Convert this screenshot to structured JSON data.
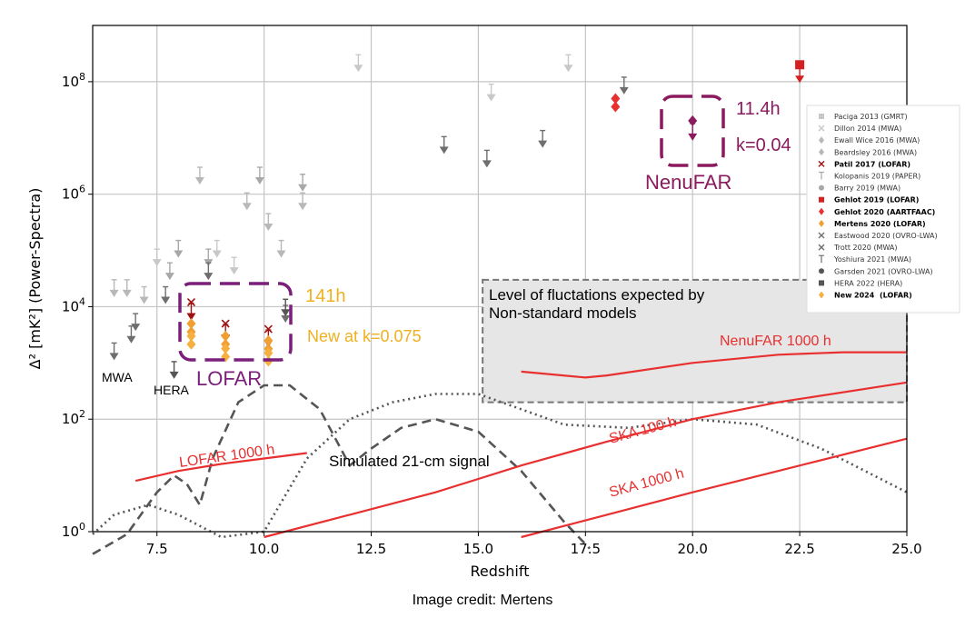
{
  "chart_data": {
    "type": "scatter",
    "xlabel": "Redshift",
    "ylabel": "Δ² [mK²] (Power-Spectra)",
    "xlim": [
      6.0,
      25.0
    ],
    "ylim_log10": [
      0,
      9
    ],
    "y_scale": "log",
    "grid": true,
    "legend_placement": "top-right",
    "x_ticks": [
      7.5,
      10.0,
      12.5,
      15.0,
      17.5,
      20.0,
      22.5,
      25.0
    ],
    "x_tick_labels": [
      "7.5",
      "10.0",
      "12.5",
      "15.0",
      "17.5",
      "20.0",
      "22.5",
      "25.0"
    ],
    "y_ticks": [
      {
        "value": 1,
        "base": "10",
        "exp": "0"
      },
      {
        "value": 100,
        "base": "10",
        "exp": "2"
      },
      {
        "value": 10000,
        "base": "10",
        "exp": "4"
      },
      {
        "value": 1000000,
        "base": "10",
        "exp": "6"
      },
      {
        "value": 100000000,
        "base": "10",
        "exp": "8"
      }
    ],
    "limit_groups": [
      {
        "color": "#c8c8c8",
        "points": [
          [
            12.2,
            200000000
          ],
          [
            15.3,
            60000000
          ],
          [
            17.1,
            200000000
          ],
          [
            8.9,
            100000
          ],
          [
            9.3,
            50000
          ],
          [
            7.5,
            70000
          ]
        ]
      },
      {
        "color": "#b8b8b8",
        "points": [
          [
            6.5,
            20000
          ],
          [
            6.8,
            20000
          ],
          [
            7.2,
            15000
          ],
          [
            8.5,
            2000000
          ],
          [
            9.6,
            700000
          ],
          [
            10.1,
            300000
          ],
          [
            10.4,
            100000
          ],
          [
            10.9,
            700000
          ]
        ]
      },
      {
        "color": "#a8a8a8",
        "points": [
          [
            8.0,
            100000
          ],
          [
            8.7,
            70000
          ],
          [
            9.9,
            2000000
          ],
          [
            10.9,
            1500000
          ],
          [
            7.8,
            40000
          ]
        ]
      },
      {
        "color": "#6e6e6e",
        "points": [
          [
            14.2,
            7000000
          ],
          [
            15.2,
            4000000
          ],
          [
            16.5,
            9000000
          ],
          [
            18.4,
            80000000
          ],
          [
            6.5,
            1500
          ],
          [
            6.9,
            3000
          ],
          [
            7.0,
            5000
          ],
          [
            7.7,
            15000
          ],
          [
            8.7,
            40000
          ],
          [
            10.5,
            7000
          ]
        ]
      },
      {
        "color": "#555555",
        "points": [
          [
            7.9,
            700
          ],
          [
            10.5,
            9000
          ]
        ]
      }
    ],
    "series": [
      {
        "name": "Paciga 2013 (GMRT)",
        "color": "#c8c8c8",
        "marker": "square",
        "bold": false,
        "points": []
      },
      {
        "name": "Dillon 2014 (MWA)",
        "color": "#c8c8c8",
        "marker": "x",
        "bold": false,
        "points": []
      },
      {
        "name": "Ewall Wice 2016 (MWA)",
        "color": "#b8b8b8",
        "marker": "diamond",
        "bold": false,
        "points": []
      },
      {
        "name": "Beardsley 2016 (MWA)",
        "color": "#b8b8b8",
        "marker": "diamond",
        "bold": false,
        "points": []
      },
      {
        "name": "Patil 2017 (LOFAR)",
        "color": "#a01010",
        "marker": "x",
        "bold": true,
        "points": [
          [
            8.3,
            12000
          ],
          [
            9.1,
            5000
          ],
          [
            10.1,
            4000
          ]
        ]
      },
      {
        "name": "Kolopanis 2019 (PAPER)",
        "color": "#a8a8a8",
        "marker": "bar",
        "bold": false,
        "points": []
      },
      {
        "name": "Barry 2019 (MWA)",
        "color": "#a8a8a8",
        "marker": "circle",
        "bold": false,
        "points": []
      },
      {
        "name": "Gehlot 2019 (LOFAR)",
        "color": "#d42020",
        "marker": "square",
        "bold": true,
        "points": [
          [
            22.5,
            200000000
          ]
        ]
      },
      {
        "name": "Gehlot 2020 (AARTFAAC)",
        "color": "#e83030",
        "marker": "diamond",
        "bold": true,
        "points": [
          [
            18.2,
            50000000
          ]
        ]
      },
      {
        "name": "Mertens 2020 (LOFAR)",
        "color": "#f0a030",
        "marker": "diamond",
        "bold": true,
        "points": [
          [
            8.3,
            5000
          ],
          [
            9.1,
            3000
          ],
          [
            10.1,
            2500
          ]
        ]
      },
      {
        "name": "Eastwood 2020 (OVRO-LWA)",
        "color": "#6e6e6e",
        "marker": "x",
        "bold": false,
        "points": []
      },
      {
        "name": "Trott 2020 (MWA)",
        "color": "#6e6e6e",
        "marker": "x",
        "bold": false,
        "points": []
      },
      {
        "name": "Yoshiura 2021 (MWA)",
        "color": "#6e6e6e",
        "marker": "bar",
        "bold": false,
        "points": []
      },
      {
        "name": "Garsden 2021 (OVRO-LWA)",
        "color": "#555555",
        "marker": "circle",
        "bold": false,
        "points": []
      },
      {
        "name": "HERA 2022 (HERA)",
        "color": "#555555",
        "marker": "square",
        "bold": false,
        "points": []
      },
      {
        "name_prefix": "New",
        "name_suffix": "(LOFAR)",
        "name_overlay": "2024",
        "color": "#f5b040",
        "marker": "diamond",
        "bold": true,
        "points": [
          [
            8.3,
            3000
          ],
          [
            9.1,
            1800
          ],
          [
            10.1,
            1500
          ]
        ]
      }
    ],
    "nenufar_point": {
      "x": 20.0,
      "y": 15000000,
      "color": "#8b1a5e"
    },
    "curves": [
      {
        "name": "Simulated 21-cm signal",
        "style": "dashed",
        "color": "#555555",
        "points": [
          [
            6.0,
            0.4
          ],
          [
            6.8,
            0.9
          ],
          [
            7.5,
            5
          ],
          [
            7.9,
            10
          ],
          [
            8.2,
            7
          ],
          [
            8.5,
            3
          ],
          [
            8.8,
            20
          ],
          [
            9.4,
            200
          ],
          [
            10.0,
            400
          ],
          [
            10.6,
            400
          ],
          [
            11.3,
            150
          ],
          [
            12.0,
            15
          ],
          [
            12.5,
            30
          ],
          [
            13.2,
            70
          ],
          [
            14.0,
            100
          ],
          [
            15.0,
            60
          ],
          [
            16.0,
            12
          ],
          [
            17.0,
            1.5
          ],
          [
            17.6,
            0.5
          ]
        ]
      },
      {
        "style": "dotted",
        "color": "#555555",
        "points": [
          [
            6.0,
            0.9
          ],
          [
            6.5,
            2
          ],
          [
            7.3,
            3
          ],
          [
            8.0,
            2
          ],
          [
            9.0,
            0.8
          ],
          [
            10.0,
            1
          ],
          [
            11.0,
            20
          ],
          [
            12.0,
            100
          ],
          [
            13.0,
            200
          ],
          [
            14.0,
            280
          ],
          [
            15.0,
            280
          ],
          [
            16.0,
            150
          ],
          [
            17.0,
            80
          ],
          [
            18.5,
            70
          ],
          [
            20.0,
            100
          ],
          [
            21.5,
            80
          ],
          [
            23.0,
            30
          ],
          [
            25.0,
            5
          ]
        ]
      },
      {
        "name": "LOFAR 1000 h",
        "style": "solid",
        "color": "#e83030",
        "points": [
          [
            7.0,
            8
          ],
          [
            8.0,
            12
          ],
          [
            9.0,
            16
          ],
          [
            10.0,
            20
          ],
          [
            11.0,
            25
          ]
        ]
      },
      {
        "name": "SKA 100 h",
        "style": "solid",
        "color": "#e83030",
        "points": [
          [
            10.0,
            0.8
          ],
          [
            12.0,
            2
          ],
          [
            14.0,
            5
          ],
          [
            16.0,
            15
          ],
          [
            18.0,
            40
          ],
          [
            20.0,
            100
          ],
          [
            22.0,
            200
          ],
          [
            25.0,
            450
          ]
        ]
      },
      {
        "name": "SKA 1000 h",
        "style": "solid",
        "color": "#e83030",
        "points": [
          [
            16.0,
            0.8
          ],
          [
            18.0,
            2
          ],
          [
            20.0,
            5
          ],
          [
            22.0,
            12
          ],
          [
            25.0,
            45
          ]
        ]
      },
      {
        "name": "NenuFAR 1000 h",
        "style": "solid",
        "color": "#e83030",
        "points": [
          [
            16.0,
            700
          ],
          [
            17.5,
            550
          ],
          [
            18.0,
            600
          ],
          [
            20.0,
            1000
          ],
          [
            22.0,
            1400
          ],
          [
            23.5,
            1550
          ],
          [
            25.0,
            1550
          ]
        ]
      }
    ],
    "shaded_region": {
      "label": "Level of fluctations expected by Non-standard models",
      "x": [
        15.1,
        25.0
      ],
      "y": [
        200,
        30000
      ]
    },
    "annotations": {
      "lofar_box_label": "LOFAR",
      "hours_141": "141h",
      "new_k": "New at k=0.075",
      "nenufar_box_label": "NenuFAR",
      "nenufar_hours": "11.4h",
      "nenufar_k": "k=0.04",
      "mwa": "MWA",
      "hera": "HERA",
      "shade_line1": "Level of fluctations expected by",
      "shade_line2": "Non-standard models",
      "lofar_curve": "LOFAR 1000 h",
      "sim_signal": "Simulated 21-cm signal",
      "ska100": "SKA 100 h",
      "ska1000": "SKA 1000 h",
      "nenufar_curve": "NenuFAR 1000 h"
    },
    "colors": {
      "lofar_purple": "#7a1f7a",
      "nenufar_purple": "#8b1a5e",
      "orange_text": "#f0b020",
      "red": "#e83030"
    }
  },
  "credit": "Image credit:  Mertens"
}
